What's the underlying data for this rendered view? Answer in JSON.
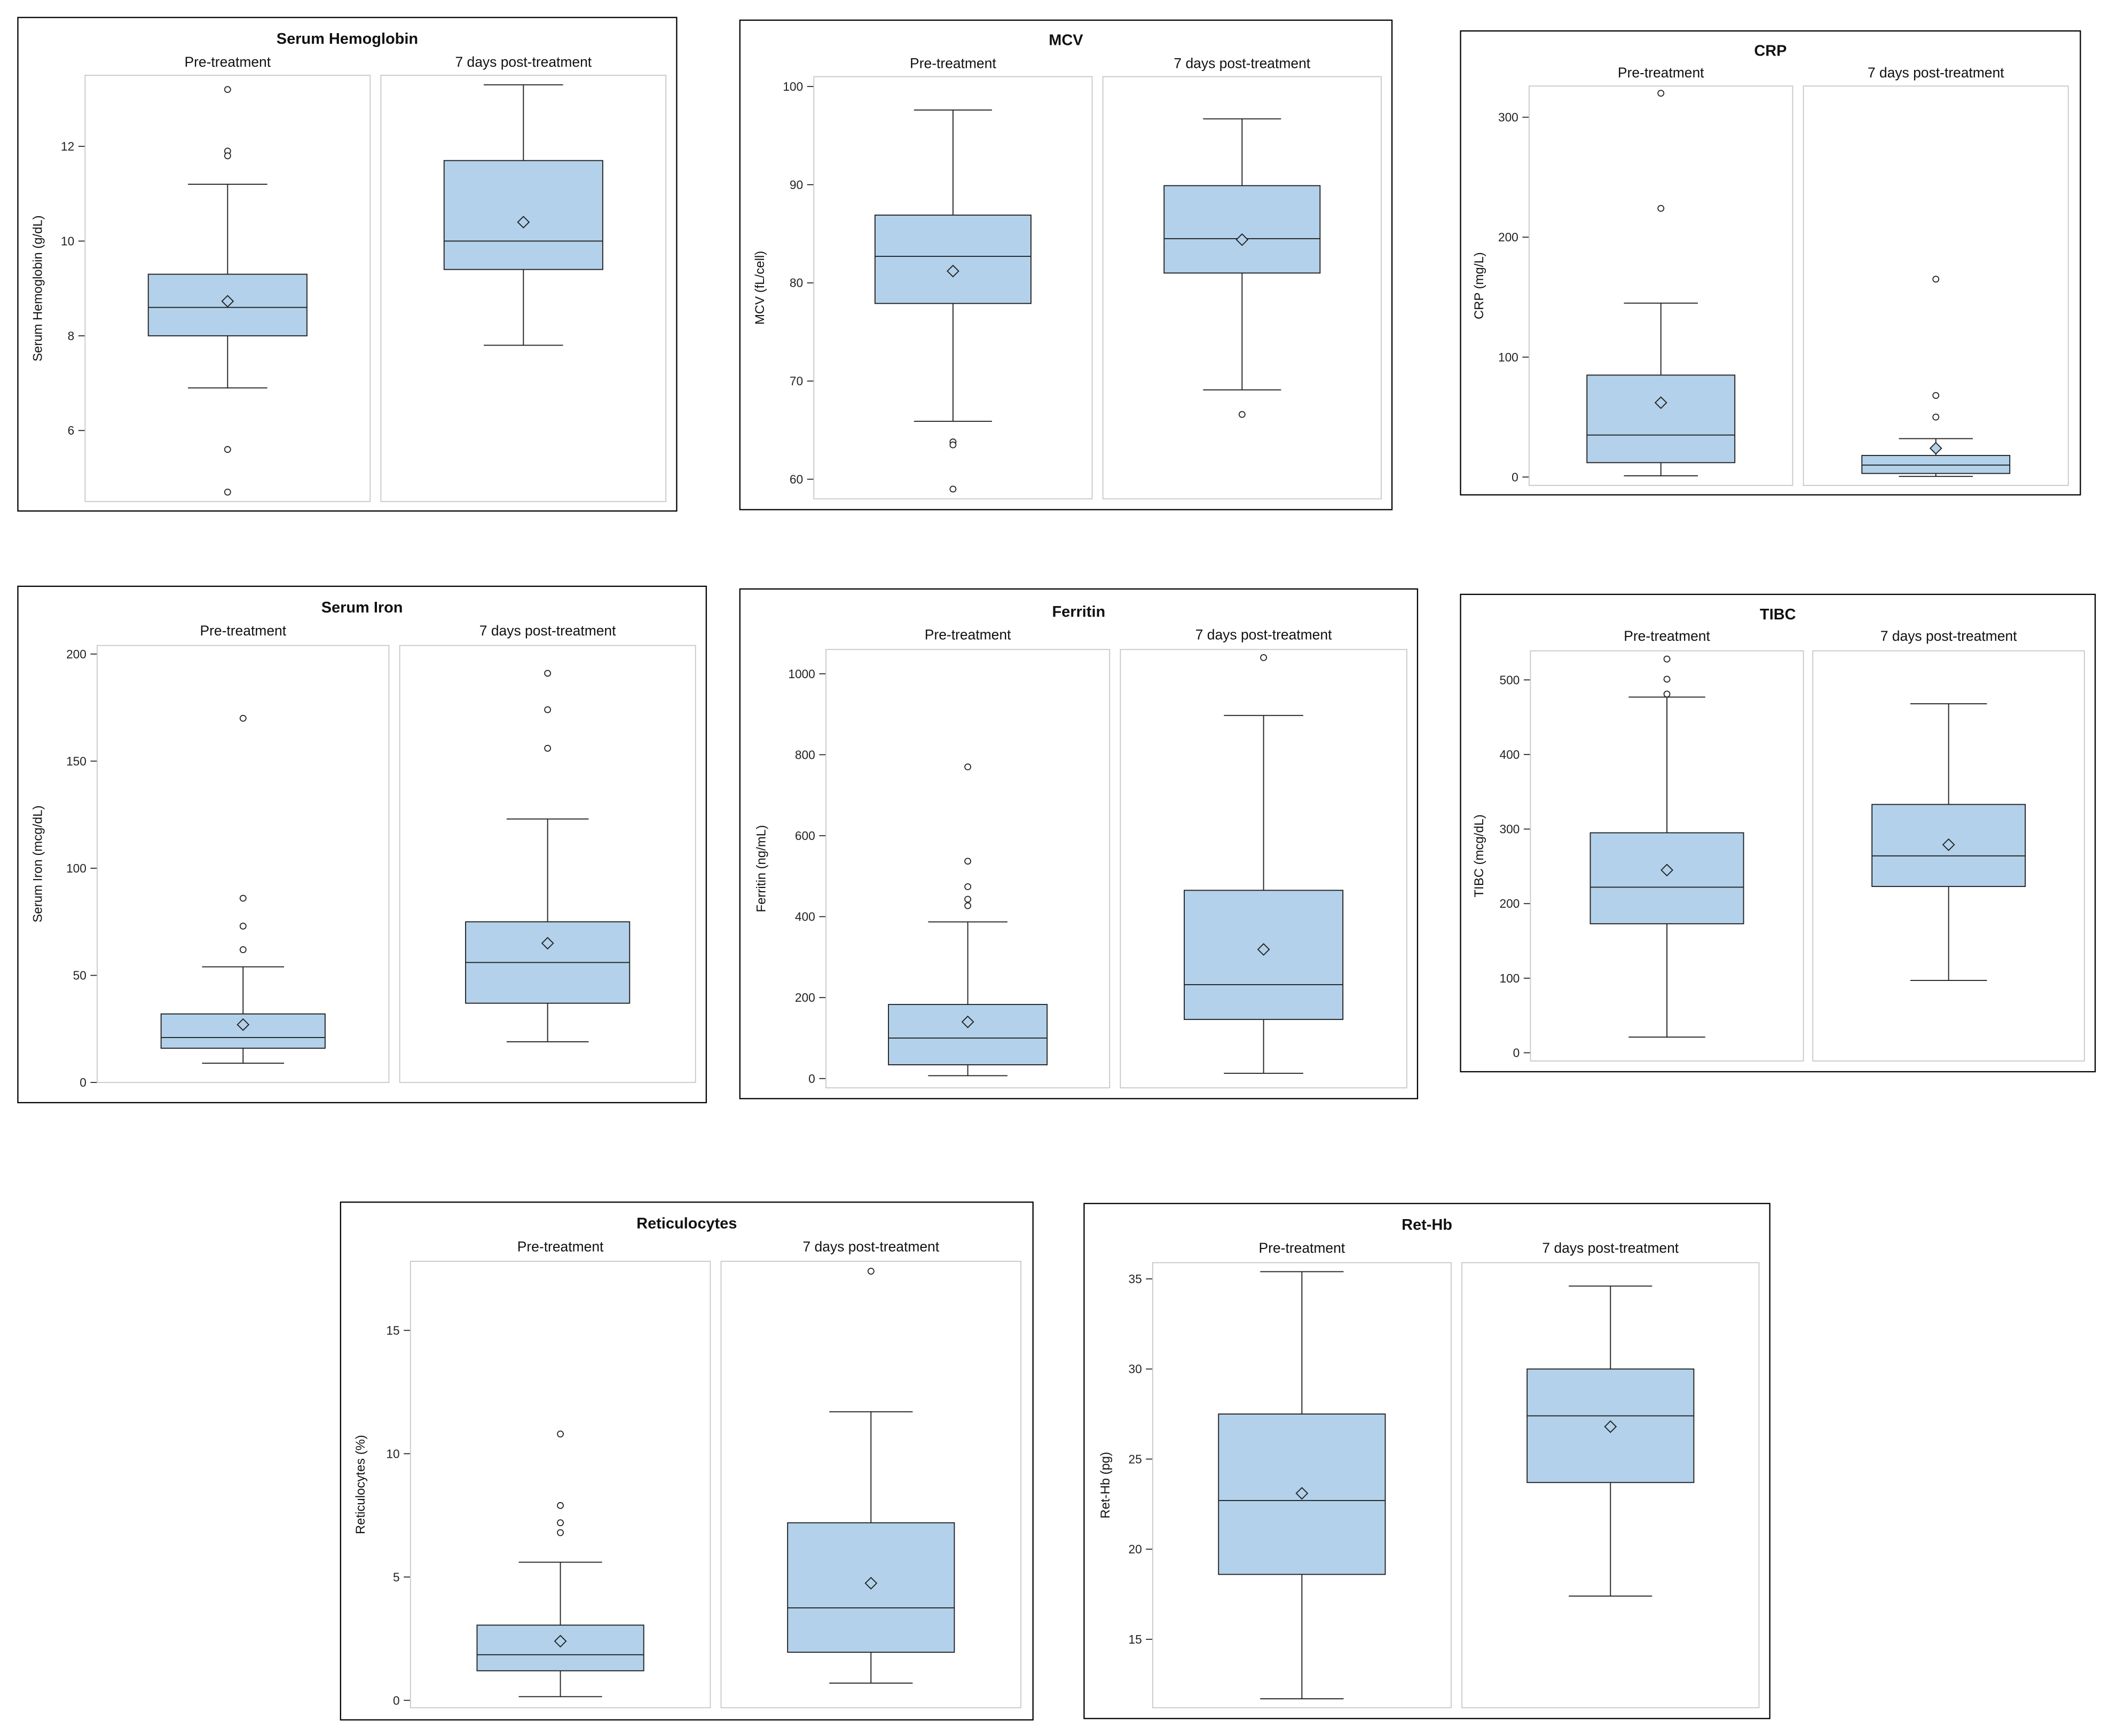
{
  "colors": {
    "box_fill": "#b3d1ea",
    "box_stroke": "#222222",
    "cell_border": "#c6c6c6",
    "frame": "#000000"
  },
  "chart_data": [
    {
      "type": "box",
      "title": "Serum Hemoglobin",
      "ylabel": "Serum Hemoglobin (g/dL)",
      "ylim": [
        4.5,
        13.5
      ],
      "yticks": [
        6,
        8,
        10,
        12
      ],
      "groups": [
        {
          "label": "Pre-treatment",
          "q1": 8.0,
          "median": 8.6,
          "q3": 9.3,
          "mean": 8.73,
          "whisker_low": 6.9,
          "whisker_high": 11.2,
          "outliers": [
            13.2,
            11.9,
            11.8,
            5.6,
            4.7
          ]
        },
        {
          "label": "7 days post-treatment",
          "q1": 9.4,
          "median": 10.0,
          "q3": 11.7,
          "mean": 10.4,
          "whisker_low": 7.8,
          "whisker_high": 13.3,
          "outliers": []
        }
      ]
    },
    {
      "type": "box",
      "title": "MCV",
      "ylabel": "MCV (fL/cell)",
      "ylim": [
        58,
        101
      ],
      "yticks": [
        60,
        70,
        80,
        90,
        100
      ],
      "groups": [
        {
          "label": "Pre-treatment",
          "q1": 77.9,
          "median": 82.7,
          "q3": 86.9,
          "mean": 81.2,
          "whisker_low": 65.9,
          "whisker_high": 97.6,
          "outliers": [
            63.8,
            63.5,
            59.0
          ]
        },
        {
          "label": "7 days post-treatment",
          "q1": 81.0,
          "median": 84.5,
          "q3": 89.9,
          "mean": 84.4,
          "whisker_low": 69.1,
          "whisker_high": 96.7,
          "outliers": [
            66.6
          ]
        }
      ]
    },
    {
      "type": "box",
      "title": "CRP",
      "ylabel": "CRP (mg/L)",
      "ylim": [
        -7,
        326
      ],
      "yticks": [
        0,
        100,
        200,
        300
      ],
      "groups": [
        {
          "label": "Pre-treatment",
          "q1": 12,
          "median": 35,
          "q3": 85,
          "mean": 62,
          "whisker_low": 1,
          "whisker_high": 145,
          "outliers": [
            320,
            224
          ]
        },
        {
          "label": "7 days post-treatment",
          "q1": 3,
          "median": 10,
          "q3": 18,
          "mean": 24,
          "whisker_low": 0.5,
          "whisker_high": 32,
          "outliers": [
            165,
            68,
            50
          ]
        }
      ]
    },
    {
      "type": "box",
      "title": "Serum Iron",
      "ylabel": "Serum Iron (mcg/dL)",
      "ylim": [
        0,
        204
      ],
      "yticks": [
        0,
        50,
        100,
        150,
        200
      ],
      "groups": [
        {
          "label": "Pre-treatment",
          "q1": 16,
          "median": 21,
          "q3": 32,
          "mean": 27,
          "whisker_low": 9,
          "whisker_high": 54,
          "outliers": [
            170,
            86,
            73,
            62
          ]
        },
        {
          "label": "7 days post-treatment",
          "q1": 37,
          "median": 56,
          "q3": 75,
          "mean": 65,
          "whisker_low": 19,
          "whisker_high": 123,
          "outliers": [
            191,
            174,
            156
          ]
        }
      ]
    },
    {
      "type": "box",
      "title": "Ferritin",
      "ylabel": "Ferritin (ng/mL)",
      "ylim": [
        -23,
        1060
      ],
      "yticks": [
        0,
        200,
        400,
        600,
        800,
        1000
      ],
      "groups": [
        {
          "label": "Pre-treatment",
          "q1": 34,
          "median": 100,
          "q3": 183,
          "mean": 140,
          "whisker_low": 7,
          "whisker_high": 387,
          "outliers": [
            770,
            537,
            474,
            443,
            427
          ]
        },
        {
          "label": "7 days post-treatment",
          "q1": 146,
          "median": 232,
          "q3": 465,
          "mean": 319,
          "whisker_low": 13,
          "whisker_high": 897,
          "outliers": [
            1040
          ]
        }
      ]
    },
    {
      "type": "box",
      "title": "TIBC",
      "ylabel": "TIBC (mcg/dL)",
      "ylim": [
        -11,
        539
      ],
      "yticks": [
        0,
        100,
        200,
        300,
        400,
        500
      ],
      "groups": [
        {
          "label": "Pre-treatment",
          "q1": 173,
          "median": 222,
          "q3": 295,
          "mean": 245,
          "whisker_low": 21,
          "whisker_high": 477,
          "outliers": [
            528,
            501,
            481
          ]
        },
        {
          "label": "7 days post-treatment",
          "q1": 223,
          "median": 264,
          "q3": 333,
          "mean": 279,
          "whisker_low": 97,
          "whisker_high": 468,
          "outliers": []
        }
      ]
    },
    {
      "type": "box",
      "title": "Reticulocytes",
      "ylabel": "Reticulocytes (%)",
      "ylim": [
        -0.3,
        17.8
      ],
      "yticks": [
        0,
        5,
        10,
        15
      ],
      "groups": [
        {
          "label": "Pre-treatment",
          "q1": 1.2,
          "median": 1.85,
          "q3": 3.05,
          "mean": 2.4,
          "whisker_low": 0.15,
          "whisker_high": 5.6,
          "outliers": [
            10.8,
            7.9,
            7.2,
            6.8
          ]
        },
        {
          "label": "7 days post-treatment",
          "q1": 1.95,
          "median": 3.75,
          "q3": 7.2,
          "mean": 4.75,
          "whisker_low": 0.7,
          "whisker_high": 11.7,
          "outliers": [
            17.4
          ]
        }
      ]
    },
    {
      "type": "box",
      "title": "Ret-Hb",
      "ylabel": "Ret-Hb (pg)",
      "ylim": [
        11.2,
        35.9
      ],
      "yticks": [
        15,
        20,
        25,
        30,
        35
      ],
      "groups": [
        {
          "label": "Pre-treatment",
          "q1": 18.6,
          "median": 22.7,
          "q3": 27.5,
          "mean": 23.1,
          "whisker_low": 11.7,
          "whisker_high": 35.4,
          "outliers": []
        },
        {
          "label": "7 days post-treatment",
          "q1": 23.7,
          "median": 27.4,
          "q3": 30.0,
          "mean": 26.8,
          "whisker_low": 17.4,
          "whisker_high": 34.6,
          "outliers": []
        }
      ]
    }
  ]
}
